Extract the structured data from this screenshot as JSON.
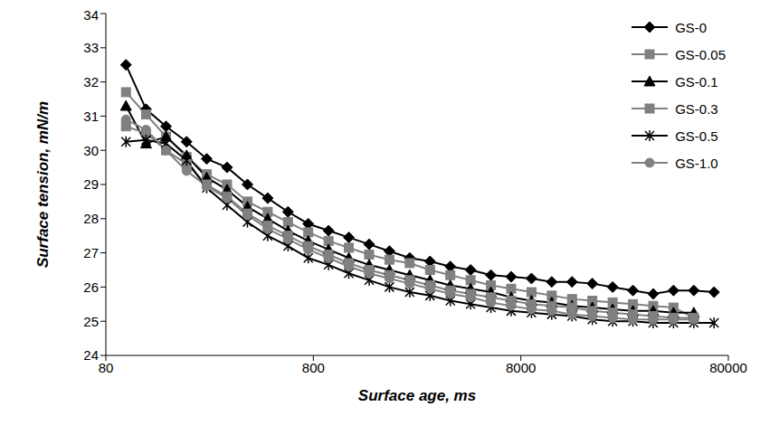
{
  "chart_data": {
    "type": "line",
    "x_label": "Surface age, ms",
    "y_label": "Surface tension, mN/m",
    "log": "x",
    "grid": false,
    "legend": "top-right",
    "xlim": [
      80,
      80000
    ],
    "xticks": [
      80,
      800,
      8000,
      80000
    ],
    "ylim": [
      24,
      34
    ],
    "yticks": [
      24,
      25,
      26,
      27,
      28,
      29,
      30,
      31,
      32,
      33,
      34
    ],
    "x": [
      100,
      125,
      156,
      196,
      245,
      307,
      385,
      482,
      604,
      756,
      947,
      1186,
      1486,
      1861,
      2331,
      2920,
      3657,
      4581,
      5738,
      7187,
      9002,
      11275,
      14122,
      17689,
      22156,
      27751,
      34759,
      43537,
      54531,
      68301
    ],
    "series": [
      {
        "name": "GS-0",
        "color": "#000000",
        "marker": "diamond",
        "values": [
          32.5,
          31.2,
          30.7,
          30.25,
          29.75,
          29.5,
          29.0,
          28.6,
          28.2,
          27.85,
          27.65,
          27.45,
          27.25,
          27.05,
          26.85,
          26.75,
          26.6,
          26.5,
          26.35,
          26.3,
          26.25,
          26.15,
          26.15,
          26.1,
          26.0,
          25.9,
          25.8,
          25.9,
          25.9,
          25.85
        ]
      },
      {
        "name": "GS-0.05",
        "color": "#808080",
        "marker": "square",
        "values": [
          31.7,
          31.05,
          30.4,
          29.8,
          29.3,
          29.0,
          28.5,
          28.2,
          27.9,
          27.6,
          27.35,
          27.15,
          26.95,
          26.8,
          26.7,
          26.5,
          26.35,
          26.2,
          26.05,
          25.95,
          25.85,
          25.75,
          25.65,
          25.6,
          25.55,
          25.5,
          25.45,
          25.4,
          25.1,
          null
        ]
      },
      {
        "name": "GS-0.1",
        "color": "#000000",
        "marker": "triangle",
        "values": [
          31.3,
          30.2,
          30.4,
          29.85,
          29.2,
          28.85,
          28.35,
          28.0,
          27.65,
          27.35,
          27.1,
          26.85,
          26.65,
          26.5,
          26.35,
          26.2,
          26.05,
          25.95,
          25.85,
          25.7,
          25.6,
          25.55,
          25.45,
          25.4,
          25.35,
          25.3,
          25.3,
          25.25,
          25.25,
          null
        ]
      },
      {
        "name": "GS-0.3",
        "color": "#808080",
        "marker": "square",
        "values": [
          30.7,
          30.5,
          30.0,
          29.6,
          29.0,
          28.65,
          28.15,
          27.8,
          27.5,
          27.2,
          26.95,
          26.7,
          26.5,
          26.35,
          26.2,
          26.05,
          25.9,
          25.8,
          25.7,
          25.6,
          25.5,
          25.45,
          25.4,
          25.3,
          25.25,
          25.2,
          25.15,
          25.1,
          25.1,
          null
        ]
      },
      {
        "name": "GS-0.5",
        "color": "#000000",
        "marker": "star",
        "values": [
          30.25,
          30.3,
          30.2,
          29.7,
          28.9,
          28.4,
          27.9,
          27.5,
          27.2,
          26.85,
          26.65,
          26.4,
          26.2,
          26.0,
          25.85,
          25.75,
          25.6,
          25.5,
          25.4,
          25.3,
          25.25,
          25.2,
          25.15,
          25.05,
          25.0,
          25.0,
          24.95,
          24.95,
          24.95,
          24.95
        ]
      },
      {
        "name": "GS-1.0",
        "color": "#808080",
        "marker": "circle",
        "values": [
          30.9,
          30.6,
          30.0,
          29.4,
          28.95,
          28.6,
          28.1,
          27.7,
          27.4,
          27.1,
          26.85,
          26.6,
          26.4,
          26.25,
          26.1,
          25.95,
          25.8,
          25.7,
          25.55,
          25.45,
          25.35,
          25.3,
          25.2,
          25.15,
          25.1,
          25.05,
          25.05,
          25.05,
          25.05,
          null
        ]
      }
    ]
  }
}
